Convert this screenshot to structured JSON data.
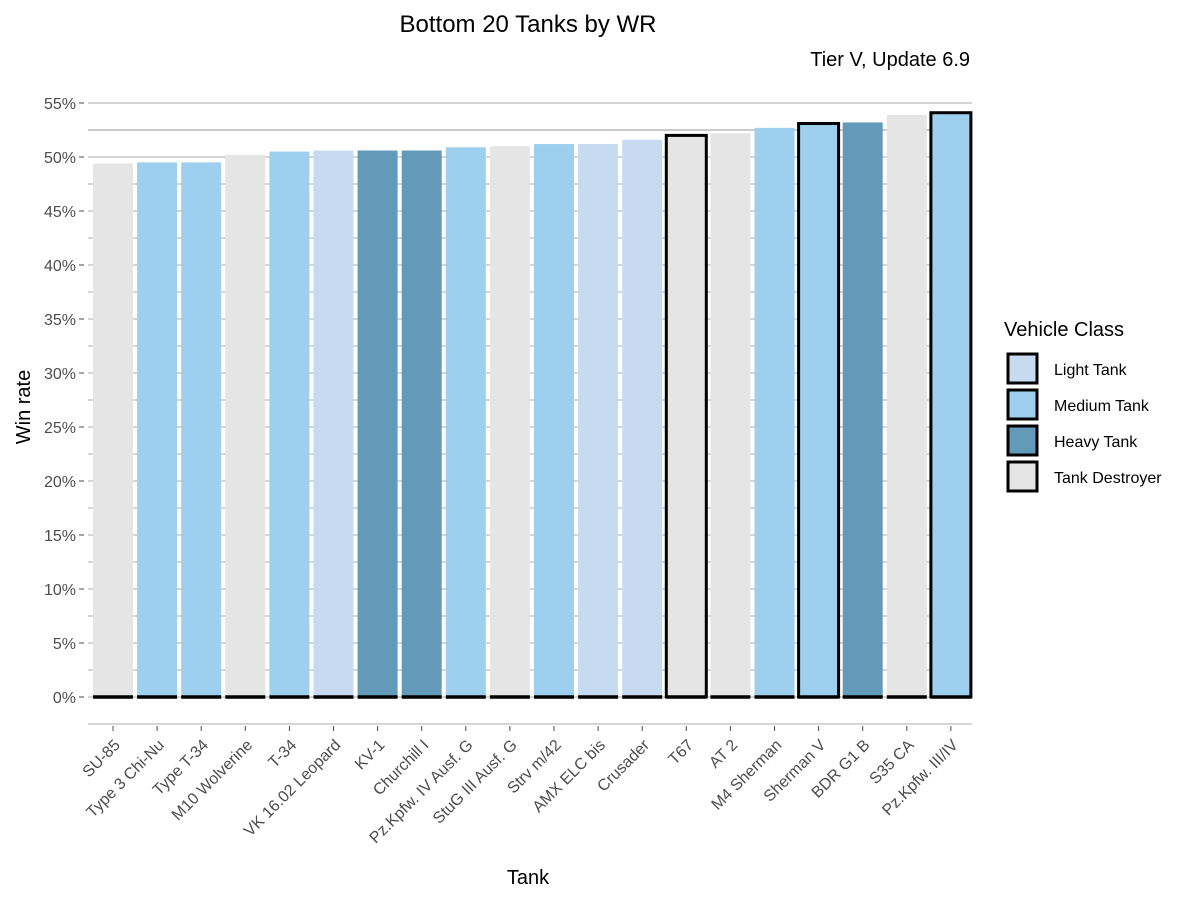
{
  "chart_data": {
    "type": "bar",
    "title": "Bottom 20 Tanks by WR",
    "subtitle": "Tier V, Update 6.9",
    "xlabel": "Tank",
    "ylabel": "Win rate",
    "ylim": [
      0,
      0.55
    ],
    "yticks": [
      {
        "value": 0.0,
        "label": "0%"
      },
      {
        "value": 0.05,
        "label": "5%"
      },
      {
        "value": 0.1,
        "label": "10%"
      },
      {
        "value": 0.15,
        "label": "15%"
      },
      {
        "value": 0.2,
        "label": "20%"
      },
      {
        "value": 0.25,
        "label": "25%"
      },
      {
        "value": 0.3,
        "label": "30%"
      },
      {
        "value": 0.35,
        "label": "35%"
      },
      {
        "value": 0.4,
        "label": "40%"
      },
      {
        "value": 0.45,
        "label": "45%"
      },
      {
        "value": 0.5,
        "label": "50%"
      },
      {
        "value": 0.55,
        "label": "55%"
      }
    ],
    "grid": true,
    "reference_line": 0.525,
    "legend": {
      "title": "Vehicle Class",
      "placement": "right",
      "entries": [
        {
          "label": "Light Tank",
          "color": "#c6dbef"
        },
        {
          "label": "Medium Tank",
          "color": "#9ecfee"
        },
        {
          "label": "Heavy Tank",
          "color": "#6399b9"
        },
        {
          "label": "Tank Destroyer",
          "color": "#e5e5e5"
        }
      ]
    },
    "bars": [
      {
        "category": "SU-85",
        "value": 0.494,
        "class": "Tank Destroyer",
        "highlighted": false
      },
      {
        "category": "Type 3 Chi-Nu",
        "value": 0.495,
        "class": "Medium Tank",
        "highlighted": false
      },
      {
        "category": "Type T-34",
        "value": 0.495,
        "class": "Medium Tank",
        "highlighted": false
      },
      {
        "category": "M10 Wolverine",
        "value": 0.502,
        "class": "Tank Destroyer",
        "highlighted": false
      },
      {
        "category": "T-34",
        "value": 0.505,
        "class": "Medium Tank",
        "highlighted": false
      },
      {
        "category": "VK 16.02 Leopard",
        "value": 0.506,
        "class": "Light Tank",
        "highlighted": false
      },
      {
        "category": "KV-1",
        "value": 0.506,
        "class": "Heavy Tank",
        "highlighted": false
      },
      {
        "category": "Churchill I",
        "value": 0.506,
        "class": "Heavy Tank",
        "highlighted": false
      },
      {
        "category": "Pz.Kpfw. IV Ausf. G",
        "value": 0.509,
        "class": "Medium Tank",
        "highlighted": false
      },
      {
        "category": "StuG III Ausf. G",
        "value": 0.51,
        "class": "Tank Destroyer",
        "highlighted": false
      },
      {
        "category": "Strv m/42",
        "value": 0.512,
        "class": "Medium Tank",
        "highlighted": false
      },
      {
        "category": "AMX ELC bis",
        "value": 0.512,
        "class": "Light Tank",
        "highlighted": false
      },
      {
        "category": "Crusader",
        "value": 0.516,
        "class": "Light Tank",
        "highlighted": false
      },
      {
        "category": "T67",
        "value": 0.52,
        "class": "Tank Destroyer",
        "highlighted": true
      },
      {
        "category": "AT 2",
        "value": 0.522,
        "class": "Tank Destroyer",
        "highlighted": false
      },
      {
        "category": "M4 Sherman",
        "value": 0.527,
        "class": "Medium Tank",
        "highlighted": false
      },
      {
        "category": "Sherman V",
        "value": 0.531,
        "class": "Medium Tank",
        "highlighted": true
      },
      {
        "category": "BDR G1 B",
        "value": 0.532,
        "class": "Heavy Tank",
        "highlighted": false
      },
      {
        "category": "S35 CA",
        "value": 0.539,
        "class": "Tank Destroyer",
        "highlighted": false
      },
      {
        "category": "Pz.Kpfw. III/IV",
        "value": 0.541,
        "class": "Medium Tank",
        "highlighted": true
      }
    ]
  }
}
